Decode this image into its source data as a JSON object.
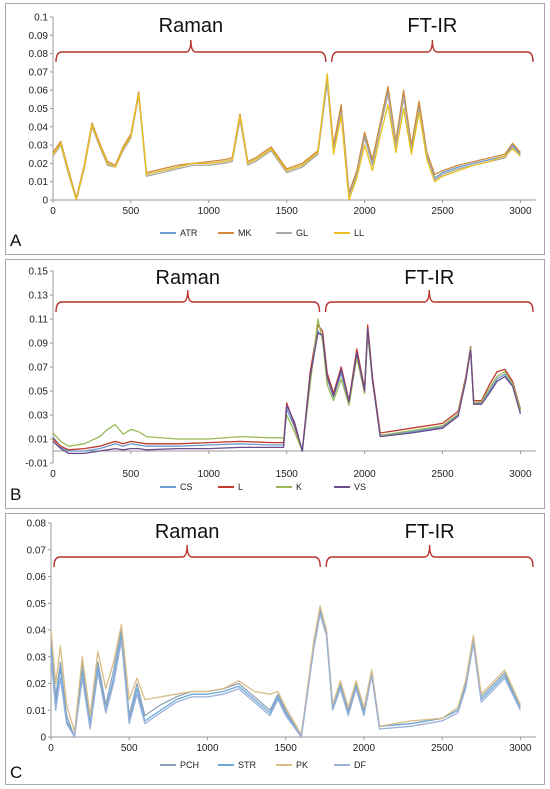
{
  "panels": [
    {
      "label": "A",
      "regions": [
        "Raman",
        "FT-IR"
      ],
      "colors": [
        "#6a9bd1",
        "#d08a3a",
        "#a9a9a9",
        "#e8c020"
      ]
    },
    {
      "label": "B",
      "regions": [
        "Raman",
        "FT-IR"
      ],
      "colors": [
        "#6a9bd1",
        "#c0392b",
        "#9bbb59",
        "#6a4b8c"
      ]
    },
    {
      "label": "C",
      "regions": [
        "Raman",
        "FT-IR"
      ],
      "colors": [
        "#8fa3b8",
        "#6ea9d8",
        "#d8bc86",
        "#9ab0d8"
      ]
    }
  ],
  "chart_data": [
    {
      "type": "line",
      "panel": "A",
      "xlim": [
        0,
        3100
      ],
      "xticks": [
        "0",
        "500",
        "1000",
        "1500",
        "2000",
        "2500",
        "3000"
      ],
      "ylim": [
        0,
        0.1
      ],
      "yticks": [
        "0",
        "0.01",
        "0.02",
        "0.03",
        "0.04",
        "0.05",
        "0.06",
        "0.07",
        "0.08",
        "0.09",
        "0.1"
      ],
      "brace_ranges": [
        [
          0,
          1770
        ],
        [
          1770,
          3100
        ]
      ],
      "x": [
        0,
        50,
        100,
        150,
        200,
        250,
        300,
        350,
        400,
        450,
        500,
        550,
        600,
        700,
        800,
        900,
        1000,
        1100,
        1150,
        1200,
        1250,
        1300,
        1400,
        1500,
        1600,
        1700,
        1760,
        1800,
        1850,
        1900,
        1950,
        2000,
        2050,
        2100,
        2150,
        2200,
        2250,
        2300,
        2350,
        2400,
        2450,
        2500,
        2600,
        2700,
        2800,
        2900,
        2950,
        3000
      ],
      "series": [
        {
          "name": "ATR",
          "values": [
            0.025,
            0.031,
            0.015,
            0.0,
            0.018,
            0.041,
            0.03,
            0.02,
            0.018,
            0.028,
            0.035,
            0.058,
            0.014,
            0.016,
            0.018,
            0.02,
            0.02,
            0.021,
            0.022,
            0.045,
            0.02,
            0.022,
            0.028,
            0.016,
            0.019,
            0.026,
            0.065,
            0.028,
            0.05,
            0.003,
            0.015,
            0.035,
            0.02,
            0.04,
            0.06,
            0.03,
            0.058,
            0.028,
            0.052,
            0.025,
            0.012,
            0.015,
            0.018,
            0.02,
            0.022,
            0.024,
            0.03,
            0.025
          ]
        },
        {
          "name": "MK",
          "values": [
            0.026,
            0.032,
            0.016,
            0.001,
            0.019,
            0.042,
            0.031,
            0.021,
            0.019,
            0.029,
            0.036,
            0.059,
            0.015,
            0.017,
            0.019,
            0.02,
            0.021,
            0.022,
            0.023,
            0.047,
            0.021,
            0.023,
            0.029,
            0.017,
            0.02,
            0.027,
            0.068,
            0.03,
            0.052,
            0.004,
            0.016,
            0.037,
            0.022,
            0.042,
            0.062,
            0.032,
            0.06,
            0.03,
            0.054,
            0.026,
            0.014,
            0.016,
            0.019,
            0.021,
            0.023,
            0.025,
            0.031,
            0.026
          ]
        },
        {
          "name": "GL",
          "values": [
            0.024,
            0.03,
            0.014,
            0.0,
            0.017,
            0.04,
            0.029,
            0.019,
            0.018,
            0.027,
            0.034,
            0.057,
            0.013,
            0.015,
            0.017,
            0.019,
            0.019,
            0.02,
            0.021,
            0.044,
            0.019,
            0.021,
            0.027,
            0.015,
            0.018,
            0.025,
            0.064,
            0.027,
            0.048,
            0.002,
            0.014,
            0.034,
            0.019,
            0.039,
            0.058,
            0.029,
            0.056,
            0.027,
            0.05,
            0.024,
            0.011,
            0.014,
            0.017,
            0.019,
            0.021,
            0.023,
            0.029,
            0.024
          ]
        },
        {
          "name": "LL",
          "values": [
            0.025,
            0.031,
            0.015,
            0.0,
            0.018,
            0.041,
            0.03,
            0.02,
            0.018,
            0.028,
            0.035,
            0.058,
            0.014,
            0.016,
            0.018,
            0.02,
            0.02,
            0.021,
            0.022,
            0.046,
            0.02,
            0.022,
            0.028,
            0.016,
            0.019,
            0.026,
            0.069,
            0.025,
            0.046,
            0.0,
            0.012,
            0.03,
            0.016,
            0.035,
            0.052,
            0.026,
            0.05,
            0.025,
            0.048,
            0.022,
            0.01,
            0.013,
            0.016,
            0.019,
            0.021,
            0.024,
            0.028,
            0.024
          ]
        }
      ]
    },
    {
      "type": "line",
      "panel": "B",
      "xlim": [
        0,
        3100
      ],
      "xticks": [
        "0",
        "500",
        "1000",
        "1500",
        "2000",
        "2500",
        "3000"
      ],
      "ylim": [
        -0.01,
        0.15
      ],
      "yticks": [
        "-0.01",
        "0.01",
        "0.03",
        "0.05",
        "0.07",
        "0.09",
        "0.11",
        "0.13",
        "0.15"
      ],
      "brace_ranges": [
        [
          0,
          1730
        ],
        [
          1730,
          3100
        ]
      ],
      "x": [
        0,
        50,
        100,
        200,
        300,
        350,
        400,
        450,
        500,
        550,
        600,
        800,
        1000,
        1200,
        1400,
        1480,
        1500,
        1550,
        1600,
        1650,
        1700,
        1730,
        1760,
        1800,
        1850,
        1900,
        1950,
        2000,
        2020,
        2050,
        2100,
        2300,
        2500,
        2600,
        2650,
        2680,
        2700,
        2750,
        2800,
        2850,
        2900,
        2950,
        3000
      ],
      "series": [
        {
          "name": "CS",
          "values": [
            0.012,
            0.003,
            0.0,
            0.0,
            0.002,
            0.004,
            0.006,
            0.004,
            0.006,
            0.005,
            0.004,
            0.004,
            0.005,
            0.006,
            0.005,
            0.005,
            0.035,
            0.02,
            0.0,
            0.06,
            0.1,
            0.095,
            0.06,
            0.045,
            0.065,
            0.04,
            0.08,
            0.05,
            0.1,
            0.06,
            0.013,
            0.016,
            0.02,
            0.03,
            0.06,
            0.085,
            0.04,
            0.04,
            0.05,
            0.06,
            0.064,
            0.055,
            0.033
          ]
        },
        {
          "name": "L",
          "values": [
            0.01,
            0.004,
            0.001,
            0.002,
            0.004,
            0.006,
            0.008,
            0.006,
            0.008,
            0.007,
            0.006,
            0.006,
            0.007,
            0.008,
            0.007,
            0.007,
            0.04,
            0.022,
            0.0,
            0.065,
            0.105,
            0.1,
            0.065,
            0.048,
            0.07,
            0.042,
            0.085,
            0.052,
            0.105,
            0.062,
            0.015,
            0.019,
            0.023,
            0.033,
            0.062,
            0.087,
            0.042,
            0.042,
            0.055,
            0.066,
            0.068,
            0.058,
            0.035
          ]
        },
        {
          "name": "K",
          "values": [
            0.015,
            0.008,
            0.004,
            0.006,
            0.012,
            0.018,
            0.022,
            0.014,
            0.018,
            0.016,
            0.012,
            0.01,
            0.01,
            0.012,
            0.011,
            0.011,
            0.03,
            0.016,
            0.0,
            0.055,
            0.11,
            0.092,
            0.055,
            0.042,
            0.06,
            0.038,
            0.078,
            0.048,
            0.098,
            0.058,
            0.013,
            0.017,
            0.021,
            0.031,
            0.06,
            0.086,
            0.04,
            0.041,
            0.052,
            0.062,
            0.066,
            0.056,
            0.034
          ]
        },
        {
          "name": "VS",
          "values": [
            0.008,
            0.002,
            -0.002,
            -0.002,
            0.0,
            0.001,
            0.002,
            0.001,
            0.002,
            0.002,
            0.001,
            0.002,
            0.002,
            0.003,
            0.003,
            0.003,
            0.038,
            0.024,
            0.0,
            0.062,
            0.098,
            0.097,
            0.062,
            0.046,
            0.068,
            0.041,
            0.082,
            0.05,
            0.102,
            0.06,
            0.012,
            0.015,
            0.019,
            0.029,
            0.059,
            0.084,
            0.039,
            0.039,
            0.048,
            0.058,
            0.062,
            0.054,
            0.031
          ]
        }
      ]
    },
    {
      "type": "line",
      "panel": "C",
      "xlim": [
        0,
        3100
      ],
      "xticks": [
        "0",
        "500",
        "1000",
        "1500",
        "2000",
        "2500",
        "3000"
      ],
      "ylim": [
        0,
        0.08
      ],
      "yticks": [
        "0",
        "0.01",
        "0.02",
        "0.03",
        "0.04",
        "0.05",
        "0.06",
        "0.07",
        "0.08"
      ],
      "brace_ranges": [
        [
          0,
          1740
        ],
        [
          1740,
          3100
        ]
      ],
      "x": [
        0,
        30,
        60,
        100,
        150,
        200,
        250,
        300,
        350,
        400,
        450,
        500,
        550,
        600,
        700,
        800,
        900,
        1000,
        1100,
        1200,
        1300,
        1400,
        1450,
        1500,
        1600,
        1680,
        1720,
        1760,
        1800,
        1850,
        1900,
        1950,
        2000,
        2050,
        2100,
        2300,
        2500,
        2600,
        2650,
        2700,
        2750,
        2800,
        2900,
        3000
      ],
      "series": [
        {
          "name": "PCH",
          "values": [
            0.036,
            0.015,
            0.028,
            0.008,
            0.0,
            0.028,
            0.005,
            0.028,
            0.012,
            0.025,
            0.04,
            0.008,
            0.02,
            0.008,
            0.012,
            0.015,
            0.017,
            0.017,
            0.018,
            0.02,
            0.015,
            0.01,
            0.016,
            0.01,
            0.0,
            0.035,
            0.048,
            0.04,
            0.012,
            0.02,
            0.01,
            0.02,
            0.01,
            0.025,
            0.004,
            0.005,
            0.007,
            0.01,
            0.02,
            0.037,
            0.015,
            0.018,
            0.024,
            0.012
          ]
        },
        {
          "name": "STR",
          "values": [
            0.033,
            0.012,
            0.026,
            0.006,
            0.0,
            0.025,
            0.004,
            0.026,
            0.01,
            0.022,
            0.038,
            0.006,
            0.018,
            0.006,
            0.01,
            0.014,
            0.016,
            0.016,
            0.017,
            0.019,
            0.014,
            0.009,
            0.015,
            0.009,
            0.0,
            0.034,
            0.047,
            0.039,
            0.011,
            0.019,
            0.009,
            0.019,
            0.009,
            0.024,
            0.004,
            0.005,
            0.007,
            0.01,
            0.019,
            0.036,
            0.014,
            0.017,
            0.023,
            0.011
          ]
        },
        {
          "name": "PK",
          "values": [
            0.04,
            0.02,
            0.034,
            0.012,
            0.002,
            0.03,
            0.008,
            0.032,
            0.018,
            0.028,
            0.042,
            0.014,
            0.022,
            0.014,
            0.015,
            0.016,
            0.017,
            0.017,
            0.018,
            0.021,
            0.017,
            0.016,
            0.017,
            0.011,
            0.001,
            0.036,
            0.049,
            0.04,
            0.012,
            0.021,
            0.011,
            0.021,
            0.011,
            0.025,
            0.004,
            0.006,
            0.007,
            0.011,
            0.021,
            0.038,
            0.016,
            0.019,
            0.025,
            0.012
          ]
        },
        {
          "name": "DF",
          "values": [
            0.03,
            0.01,
            0.022,
            0.005,
            0.0,
            0.022,
            0.003,
            0.024,
            0.009,
            0.02,
            0.036,
            0.005,
            0.016,
            0.005,
            0.009,
            0.013,
            0.015,
            0.015,
            0.016,
            0.018,
            0.013,
            0.008,
            0.014,
            0.008,
            0.0,
            0.033,
            0.046,
            0.038,
            0.01,
            0.018,
            0.008,
            0.018,
            0.008,
            0.023,
            0.003,
            0.004,
            0.006,
            0.009,
            0.018,
            0.035,
            0.013,
            0.016,
            0.022,
            0.01
          ]
        }
      ]
    }
  ]
}
